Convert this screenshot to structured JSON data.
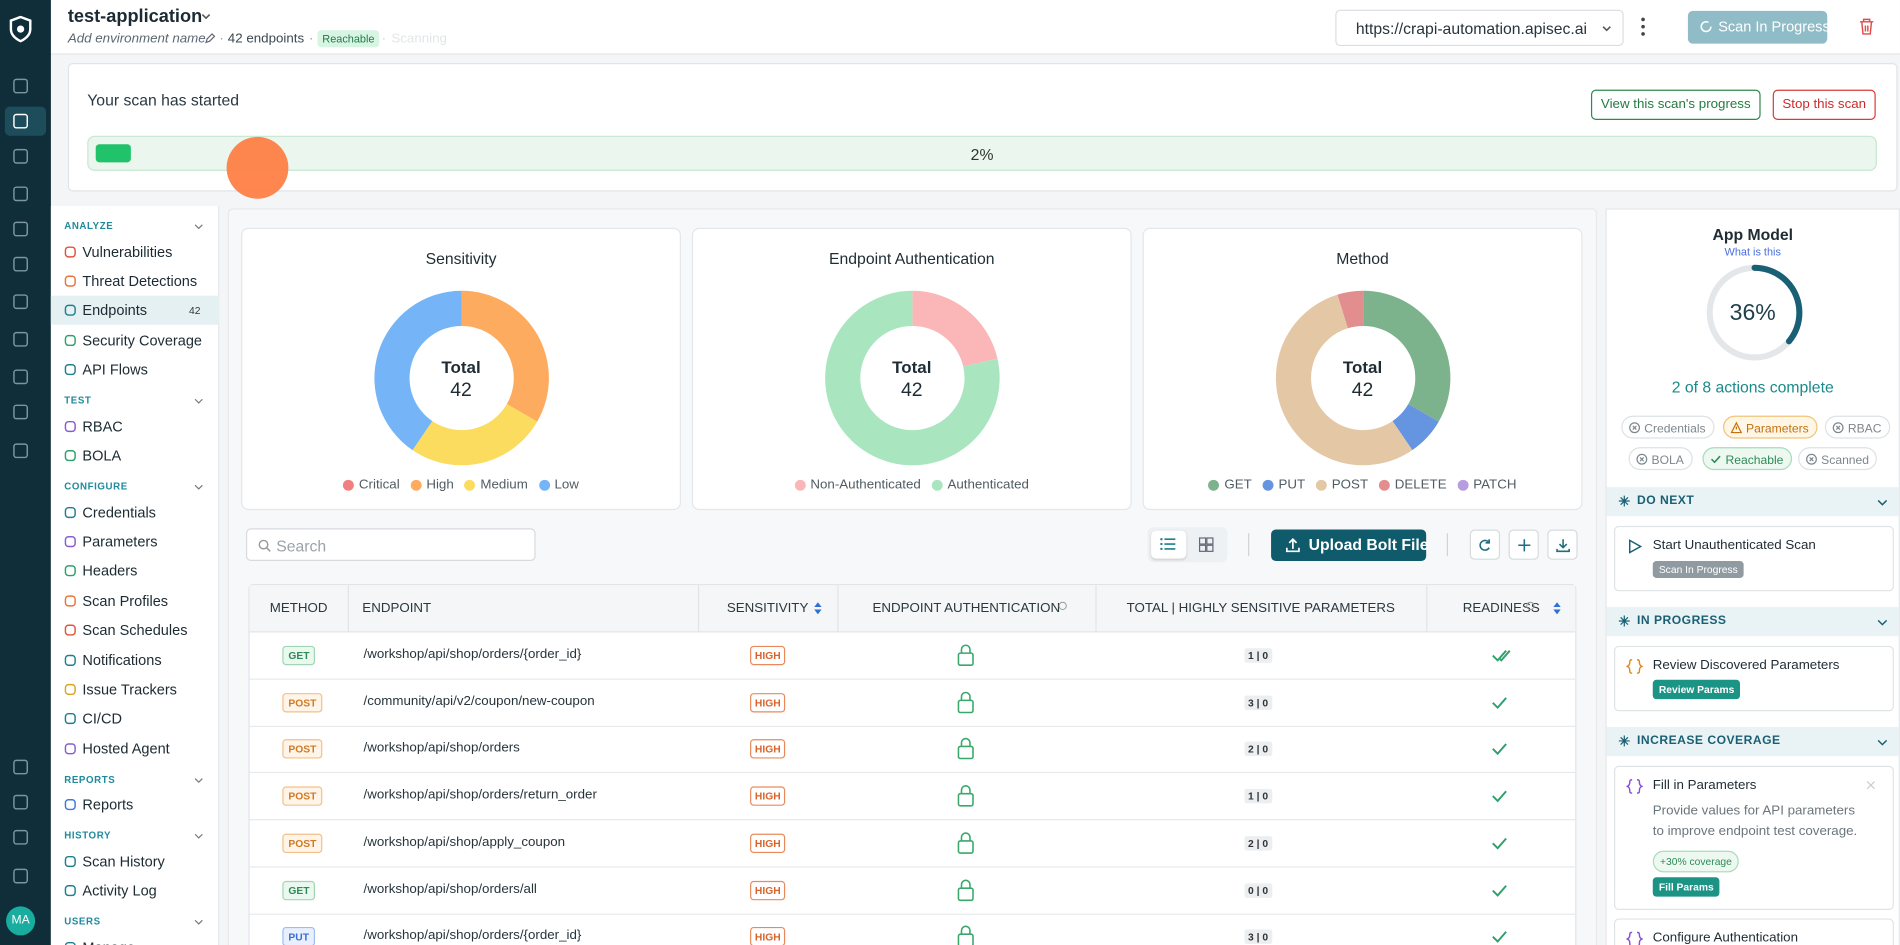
{
  "header": {
    "app_name": "test-application",
    "env_placeholder": "Add environment name",
    "endpoints": "42 endpoints",
    "status": "Reachable",
    "scanning": "Scanning",
    "url": "https://crapi-automation.apisec.ai",
    "scan_button": "Scan In Progress"
  },
  "banner": {
    "title": "Your scan has started",
    "view_button": "View this scan's progress",
    "stop_button": "Stop this scan",
    "progress": {
      "value": 2,
      "label": "2%"
    }
  },
  "sidebar": {
    "avatar": "MA",
    "sections": [
      {
        "title": "ANALYZE",
        "items": [
          {
            "label": "Vulnerabilities"
          },
          {
            "label": "Threat Detections"
          },
          {
            "label": "Endpoints",
            "badge": "42",
            "active": true
          },
          {
            "label": "Security Coverage"
          },
          {
            "label": "API Flows"
          }
        ]
      },
      {
        "title": "TEST",
        "items": [
          {
            "label": "RBAC"
          },
          {
            "label": "BOLA"
          }
        ]
      },
      {
        "title": "CONFIGURE",
        "items": [
          {
            "label": "Credentials"
          },
          {
            "label": "Parameters"
          },
          {
            "label": "Headers"
          },
          {
            "label": "Scan Profiles"
          },
          {
            "label": "Scan Schedules"
          },
          {
            "label": "Notifications"
          },
          {
            "label": "Issue Trackers"
          },
          {
            "label": "CI/CD"
          },
          {
            "label": "Hosted Agent"
          }
        ]
      },
      {
        "title": "REPORTS",
        "items": [
          {
            "label": "Reports"
          }
        ]
      },
      {
        "title": "HISTORY",
        "items": [
          {
            "label": "Scan History"
          },
          {
            "label": "Activity Log"
          }
        ]
      },
      {
        "title": "USERS",
        "items": [
          {
            "label": "Manage"
          }
        ]
      }
    ]
  },
  "charts": [
    {
      "title": "Sensitivity",
      "center_label": "Total",
      "total": "42",
      "segments": [
        {
          "name": "Critical",
          "color": "#f07f7f",
          "value": 0
        },
        {
          "name": "High",
          "color": "#fdab5e",
          "value": 14
        },
        {
          "name": "Medium",
          "color": "#fbdc5e",
          "value": 11
        },
        {
          "name": "Low",
          "color": "#75b4f7",
          "value": 17
        }
      ]
    },
    {
      "title": "Endpoint Authentication",
      "center_label": "Total",
      "total": "42",
      "segments": [
        {
          "name": "Non-Authenticated",
          "color": "#fbb7b7",
          "value": 9
        },
        {
          "name": "Authenticated",
          "color": "#a9e6bf",
          "value": 33
        }
      ]
    },
    {
      "title": "Method",
      "center_label": "Total",
      "total": "42",
      "segments": [
        {
          "name": "GET",
          "color": "#7cb38c",
          "value": 14
        },
        {
          "name": "PUT",
          "color": "#6594e0",
          "value": 3
        },
        {
          "name": "POST",
          "color": "#e4c8a6",
          "value": 23
        },
        {
          "name": "DELETE",
          "color": "#e38e8e",
          "value": 2
        },
        {
          "name": "PATCH",
          "color": "#b79ce0",
          "value": 0
        }
      ]
    }
  ],
  "toolbar": {
    "search_placeholder": "Search",
    "upload_button": "Upload Bolt File"
  },
  "table": {
    "columns": [
      "METHOD",
      "ENDPOINT",
      "SENSITIVITY",
      "ENDPOINT AUTHENTICATION",
      "TOTAL | HIGHLY SENSITIVE PARAMETERS",
      "READINESS"
    ],
    "rows": [
      [
        "GET",
        "/workshop/api/shop/orders/{order_id}",
        "HIGH",
        "1 | 0"
      ],
      [
        "POST",
        "/community/api/v2/coupon/new-coupon",
        "HIGH",
        "3 | 0"
      ],
      [
        "POST",
        "/workshop/api/shop/orders",
        "HIGH",
        "2 | 0"
      ],
      [
        "POST",
        "/workshop/api/shop/orders/return_order",
        "HIGH",
        "1 | 0"
      ],
      [
        "POST",
        "/workshop/api/shop/apply_coupon",
        "HIGH",
        "2 | 0"
      ],
      [
        "GET",
        "/workshop/api/shop/orders/all",
        "HIGH",
        "0 | 0"
      ],
      [
        "PUT",
        "/workshop/api/shop/orders/{order_id}",
        "HIGH",
        "3 | 0"
      ]
    ]
  },
  "app_model": {
    "title": "App Model",
    "link": "What is this",
    "progress": {
      "value": 36,
      "label": "36%"
    },
    "summary": "2 of 8 actions complete",
    "chips": [
      {
        "label": "Credentials",
        "state": "todo"
      },
      {
        "label": "Parameters",
        "state": "warn"
      },
      {
        "label": "RBAC",
        "state": "todo"
      },
      {
        "label": "BOLA",
        "state": "todo"
      },
      {
        "label": "Reachable",
        "state": "done"
      },
      {
        "label": "Scanned",
        "state": "todo"
      }
    ],
    "sections": [
      {
        "title": "DO NEXT",
        "cards": [
          {
            "title": "Start Unauthenticated Scan",
            "badge": "Scan In Progress"
          }
        ]
      },
      {
        "title": "IN PROGRESS",
        "cards": [
          {
            "title": "Review Discovered Parameters",
            "button": "Review Params"
          }
        ]
      },
      {
        "title": "INCREASE COVERAGE",
        "cards": [
          {
            "title": "Fill in Parameters",
            "description": "Provide values for API parameters to improve endpoint test coverage.",
            "tag": "+30% coverage",
            "button": "Fill Params"
          },
          {
            "title": "Configure Authentication"
          }
        ]
      }
    ]
  }
}
